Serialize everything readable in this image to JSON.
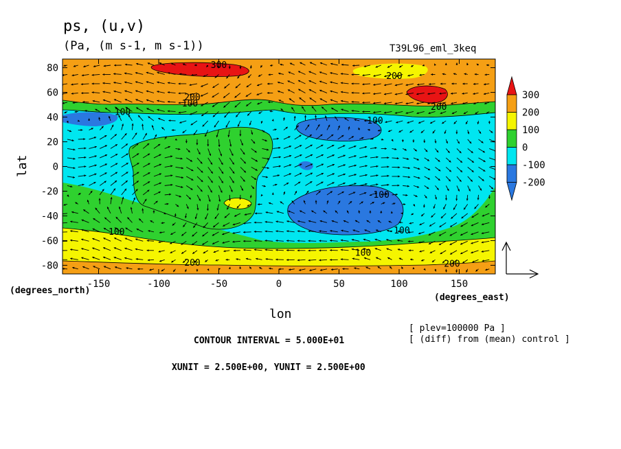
{
  "chart_data": {
    "type": "contour_vector_map",
    "title": "ps, (u,v)",
    "units_line": "(Pa, (m s-1, m s-1))",
    "run_label": "T39L96_eml_3keq",
    "xlabel": "lon",
    "ylabel": "lat",
    "x_axis_unit": "(degrees_east)",
    "y_axis_unit": "(degrees_north)",
    "xlim": [
      -180,
      180
    ],
    "ylim": [
      -87,
      87
    ],
    "x_ticks": [
      -150,
      -100,
      -50,
      0,
      50,
      100,
      150
    ],
    "x_tick_labels": [
      "-150",
      "-100",
      "-50",
      "0",
      "50",
      "100",
      "150"
    ],
    "y_ticks": [
      80,
      60,
      40,
      20,
      0,
      -20,
      -40,
      -60,
      -80
    ],
    "y_tick_labels": [
      "80",
      "60",
      "40",
      "20",
      "0",
      "-20",
      "-40",
      "-60",
      "-80"
    ],
    "colorbar": {
      "labels": [
        "300",
        "200",
        "100",
        "0",
        "-100",
        "-200"
      ],
      "levels": [
        {
          "range": [
            -300,
            -200
          ],
          "color": "#2a78e0"
        },
        {
          "range": [
            -200,
            -100
          ],
          "color": "#2a78e0"
        },
        {
          "range": [
            -100,
            0
          ],
          "color": "#00e6f0"
        },
        {
          "range": [
            0,
            100
          ],
          "color": "#2fd12f"
        },
        {
          "range": [
            100,
            200
          ],
          "color": "#f5f500"
        },
        {
          "range": [
            200,
            300
          ],
          "color": "#f59f14"
        },
        {
          "range": [
            300,
            400
          ],
          "color": "#e81414"
        }
      ]
    },
    "contour_labels": [
      {
        "text": "300",
        "lon": -50,
        "lat": 82
      },
      {
        "text": "200",
        "lon": 96,
        "lat": 73
      },
      {
        "text": "200",
        "lon": -72,
        "lat": 56
      },
      {
        "text": "100",
        "lon": -74,
        "lat": 51
      },
      {
        "text": "100",
        "lon": -130,
        "lat": 44
      },
      {
        "text": "100",
        "lon": 80,
        "lat": 37
      },
      {
        "text": "200",
        "lon": 133,
        "lat": 48
      },
      {
        "text": "-100",
        "lon": 83,
        "lat": -23
      },
      {
        "text": "100",
        "lon": -135,
        "lat": -53
      },
      {
        "text": "-100",
        "lon": 100,
        "lat": -52
      },
      {
        "text": "100",
        "lon": 70,
        "lat": -70
      },
      {
        "text": "200",
        "lon": -72,
        "lat": -78
      },
      {
        "text": "200",
        "lon": 144,
        "lat": -79
      }
    ],
    "features": [
      {
        "level": 300,
        "lon": -50,
        "lat": 80,
        "note": "positive anomaly, NH high latitudes"
      },
      {
        "level": 300,
        "lon": 120,
        "lat": 58,
        "note": "positive anomaly"
      },
      {
        "level": -200,
        "lon": 50,
        "lat": 31,
        "note": "negative anomaly center"
      },
      {
        "level": -200,
        "lon": 55,
        "lat": -38,
        "note": "negative anomaly center"
      },
      {
        "level": 200,
        "lon": -33,
        "lat": -32,
        "note": "local high"
      }
    ],
    "vector_reference": {
      "xunit": 2.5,
      "yunit": 2.5
    }
  },
  "annotations": {
    "contour_interval": "CONTOUR INTERVAL = 5.000E+01",
    "vector_units": "XUNIT = 2.500E+00, YUNIT = 2.500E+00",
    "plev": "[ plev=100000 Pa ]",
    "diff": "[ (diff) from (mean) control ]"
  },
  "colors": {
    "red": "#e81414",
    "orange": "#f59f14",
    "yellow": "#f5f500",
    "green": "#2fd12f",
    "cyan": "#00e6f0",
    "blue": "#2a78e0"
  }
}
